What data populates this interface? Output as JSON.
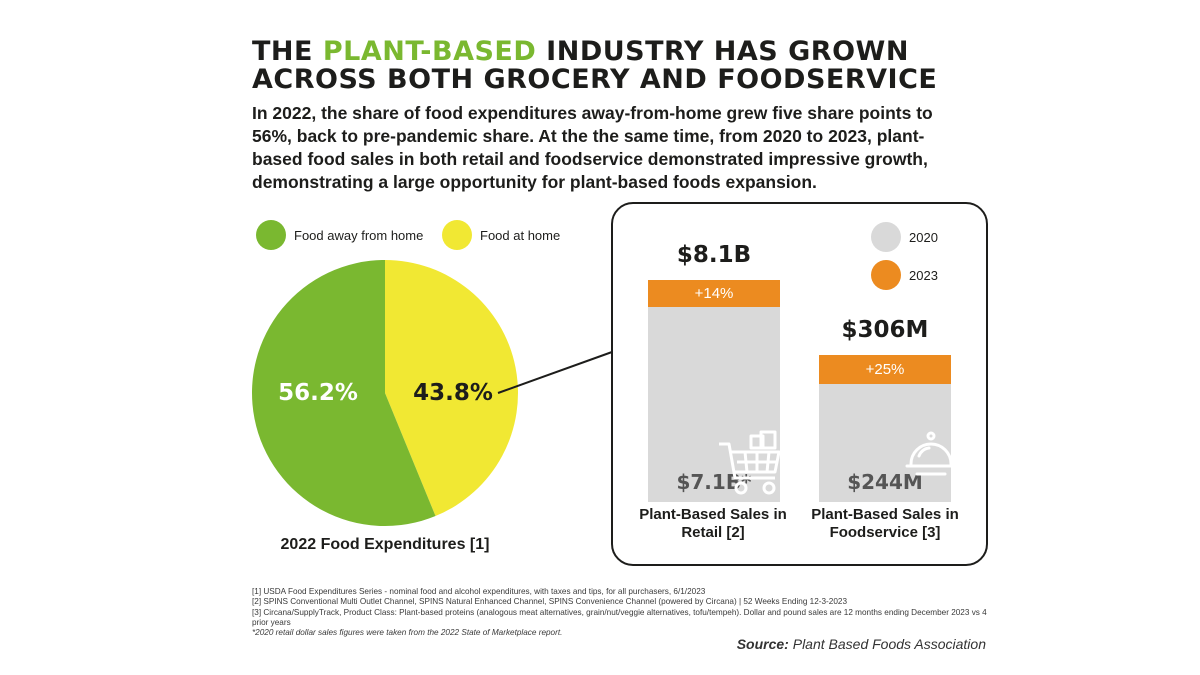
{
  "header": {
    "title_part1": "THE ",
    "title_highlight": "PLANT-BASED",
    "title_part2": " INDUSTRY HAS GROWN ACROSS BOTH GROCERY AND FOODSERVICE",
    "subtitle": "In 2022, the share of food expenditures away-from-home grew five share points to 56%, back to pre-pandemic share. At the the same time, from 2020 to 2023, plant-based food sales in both retail and foodservice demonstrated impressive growth, demonstrating a large opportunity for plant-based foods expansion."
  },
  "colors": {
    "green": "#7ab830",
    "yellow": "#f1e833",
    "orange": "#ec8b20",
    "gray": "#d9d9d9",
    "highlight": "#7ab830"
  },
  "chart_data": [
    {
      "type": "pie",
      "title": "2022 Food Expenditures [1]",
      "slices": [
        {
          "label": "Food away from home",
          "value": 56.2,
          "value_label": "56.2%",
          "color": "#7ab830"
        },
        {
          "label": "Food at home",
          "value": 43.8,
          "value_label": "43.8%",
          "color": "#f1e833"
        }
      ],
      "legend_placement": "top"
    },
    {
      "type": "bar",
      "stacked": true,
      "categories": [
        "Plant-Based Sales in Retail [2]",
        "Plant-Based Sales in Foodservice [3]"
      ],
      "series": [
        {
          "name": "2020",
          "values": [
            7.1,
            0.244
          ],
          "color": "#d9d9d9",
          "value_labels": [
            "$7.1B*",
            "$244M"
          ]
        },
        {
          "name": "2023",
          "values": [
            8.1,
            0.306
          ],
          "color": "#ec8b20",
          "value_labels": [
            "$8.1B",
            "$306M"
          ]
        }
      ],
      "growth_labels": [
        "+14%",
        "+25%"
      ],
      "units": [
        "billions USD",
        "millions USD"
      ],
      "legend_placement": "top-right"
    }
  ],
  "footnotes": [
    "[1] USDA Food Expenditures Series - nominal food and alcohol expenditures, with taxes and tips, for all purchasers, 6/1/2023",
    "[2] SPINS Conventional Multi Outlet Channel, SPINS Natural Enhanced Channel, SPINS Convenience Channel (powered by Circana) | 52 Weeks Ending 12-3-2023",
    "[3] Circana/SupplyTrack, Product Class: Plant-based proteins (analogous meat alternatives, grain/nut/veggie alternatives, tofu/tempeh). Dollar and pound sales are 12 months ending December 2023 vs 4 prior years",
    "*2020 retail dollar sales figures were taken from the 2022 State of Marketplace report."
  ],
  "source": {
    "label": "Source:",
    "text": " Plant Based Foods Association"
  },
  "icons": {
    "retail": "shopping-cart-icon",
    "foodservice": "cloche-serving-icon"
  }
}
